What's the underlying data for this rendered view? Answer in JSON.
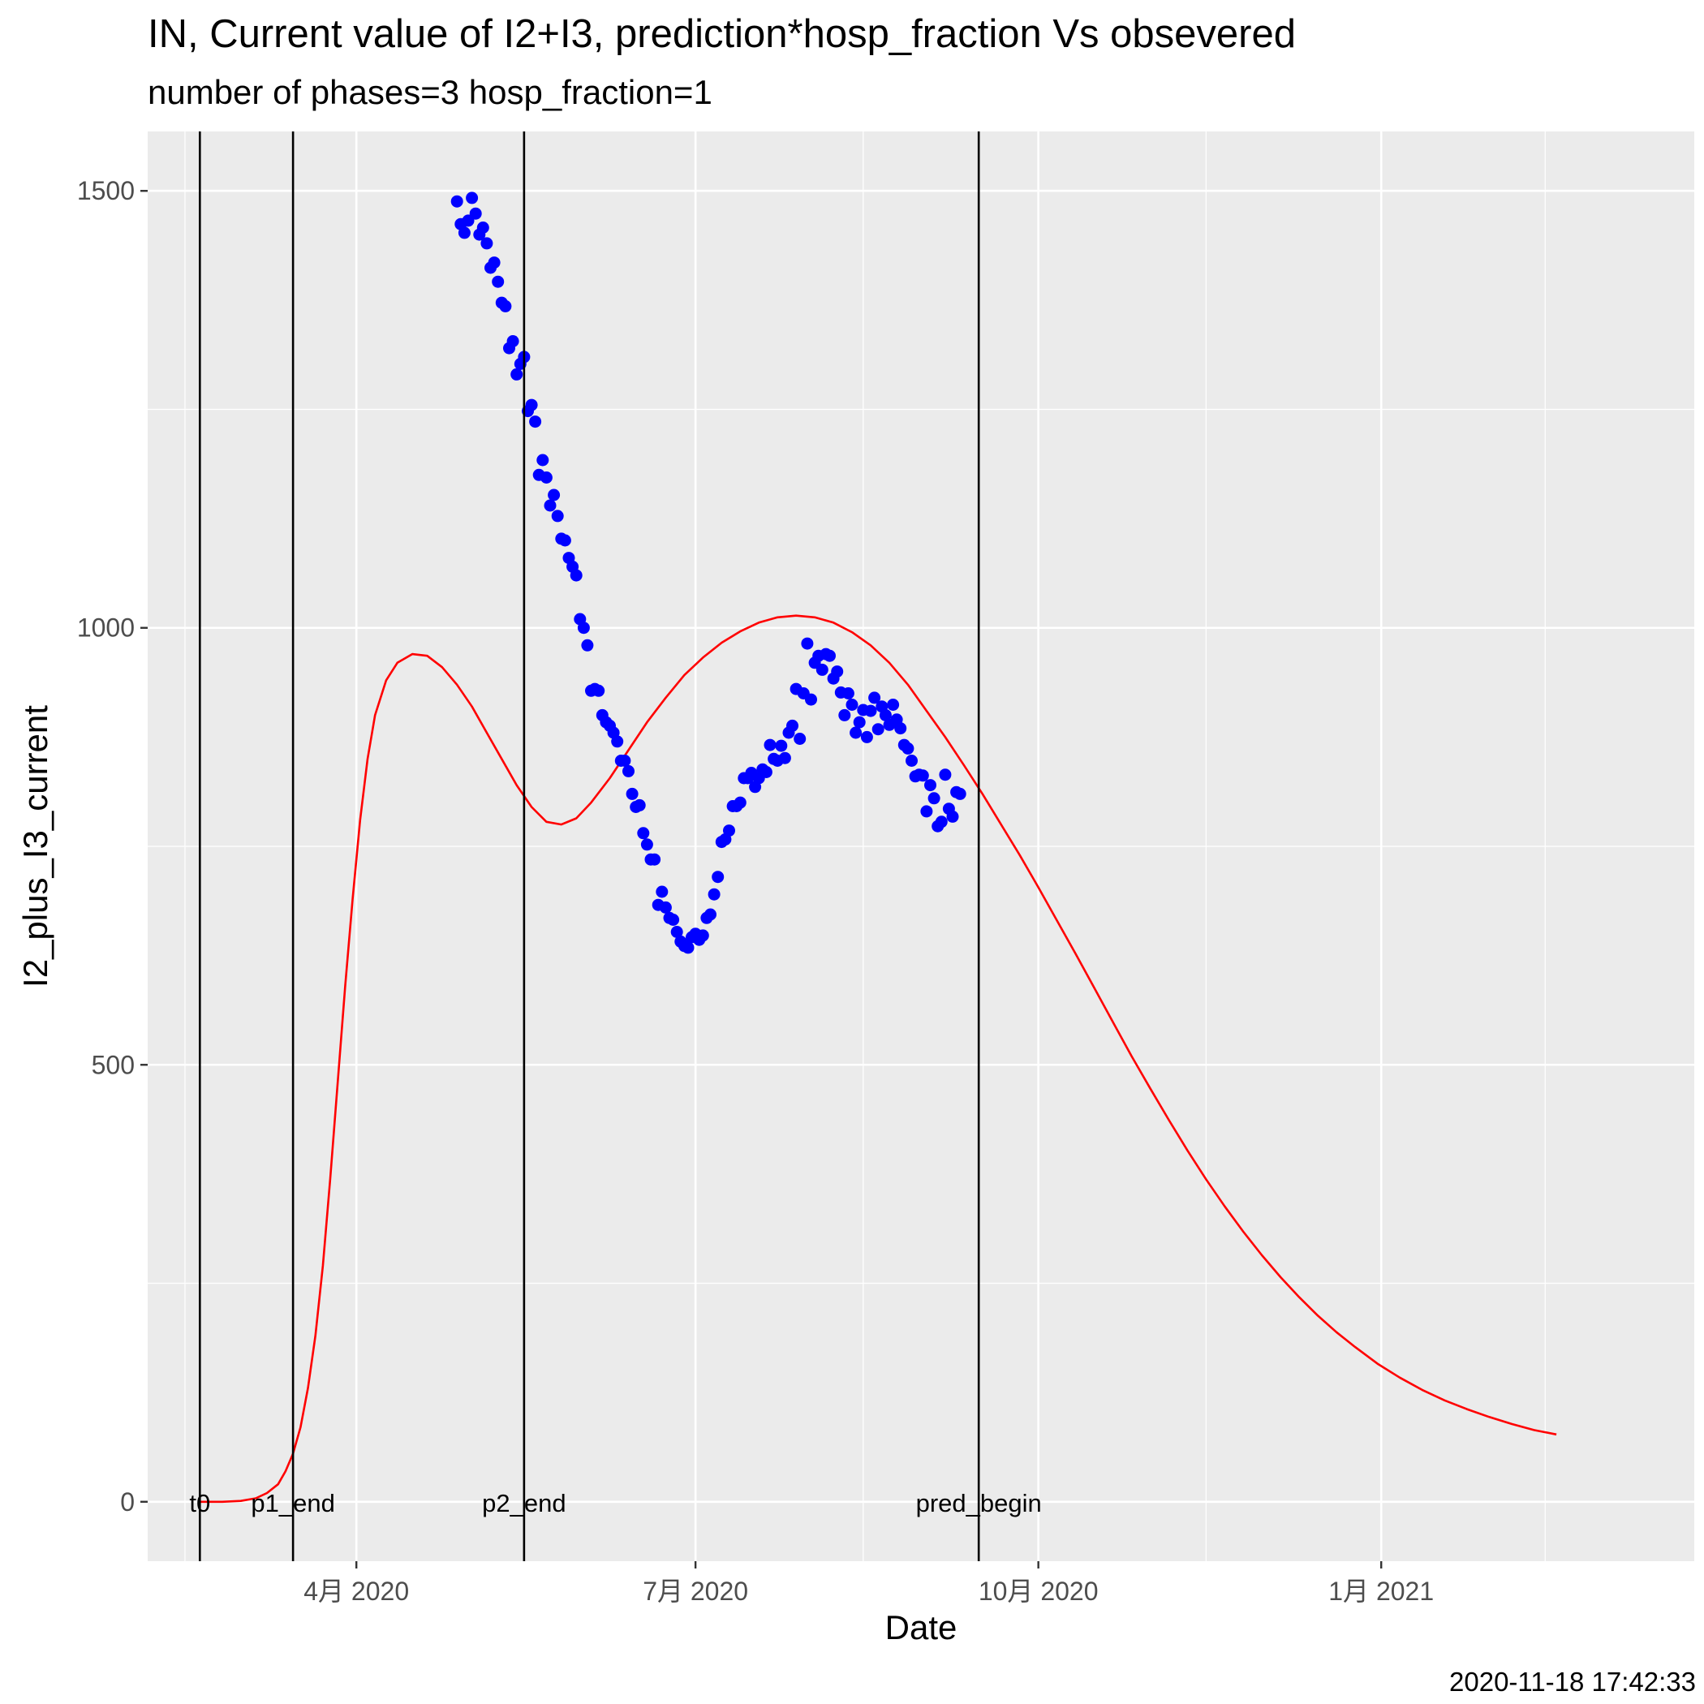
{
  "timestamp": "2020-11-18 17:42:33",
  "chart_data": {
    "type": "scatter",
    "title": "IN, Current value of I2+I3, prediction*hosp_fraction Vs obsevered",
    "subtitle": "number of phases=3   hosp_fraction=1",
    "xlabel": "Date",
    "ylabel": "I2_plus_I3_current",
    "xlim": [
      "2020-02-05",
      "2021-03-26"
    ],
    "ylim": [
      -68,
      1568
    ],
    "y_ticks": [
      0,
      500,
      1000,
      1500
    ],
    "y_minor_ticks": [
      250,
      750,
      1250
    ],
    "x_ticks": [
      {
        "date": "2020-04-01",
        "label": "4月 2020"
      },
      {
        "date": "2020-07-01",
        "label": "7月 2020"
      },
      {
        "date": "2020-10-01",
        "label": "10月 2020"
      },
      {
        "date": "2021-01-01",
        "label": "1月 2021"
      }
    ],
    "x_minor_ticks": [
      "2020-02-15",
      "2020-05-16",
      "2020-08-15",
      "2020-11-15",
      "2021-02-14"
    ],
    "grid": true,
    "colors": {
      "panel": "#EBEBEB",
      "grid": "#FFFFFF",
      "observed": "#0000FF",
      "prediction": "#FF0000",
      "vline": "#000000"
    },
    "vlines": [
      {
        "date": "2020-02-19",
        "label": "t0"
      },
      {
        "date": "2020-03-15",
        "label": "p1_end"
      },
      {
        "date": "2020-05-16",
        "label": "p2_end"
      },
      {
        "date": "2020-09-15",
        "label": "pred_begin"
      }
    ],
    "series": [
      {
        "kind": "line",
        "points": [
          [
            "2020-02-19",
            0
          ],
          [
            "2020-02-25",
            0
          ],
          [
            "2020-03-01",
            1
          ],
          [
            "2020-03-05",
            4
          ],
          [
            "2020-03-08",
            10
          ],
          [
            "2020-03-11",
            20
          ],
          [
            "2020-03-13",
            35
          ],
          [
            "2020-03-15",
            55
          ],
          [
            "2020-03-17",
            85
          ],
          [
            "2020-03-19",
            130
          ],
          [
            "2020-03-21",
            190
          ],
          [
            "2020-03-23",
            270
          ],
          [
            "2020-03-25",
            370
          ],
          [
            "2020-03-27",
            480
          ],
          [
            "2020-03-29",
            590
          ],
          [
            "2020-03-31",
            690
          ],
          [
            "2020-04-02",
            780
          ],
          [
            "2020-04-04",
            850
          ],
          [
            "2020-04-06",
            900
          ],
          [
            "2020-04-09",
            940
          ],
          [
            "2020-04-12",
            960
          ],
          [
            "2020-04-16",
            970
          ],
          [
            "2020-04-20",
            968
          ],
          [
            "2020-04-24",
            955
          ],
          [
            "2020-04-28",
            935
          ],
          [
            "2020-05-02",
            910
          ],
          [
            "2020-05-06",
            880
          ],
          [
            "2020-05-10",
            850
          ],
          [
            "2020-05-14",
            820
          ],
          [
            "2020-05-18",
            795
          ],
          [
            "2020-05-22",
            778
          ],
          [
            "2020-05-26",
            775
          ],
          [
            "2020-05-30",
            782
          ],
          [
            "2020-06-03",
            800
          ],
          [
            "2020-06-08",
            828
          ],
          [
            "2020-06-13",
            860
          ],
          [
            "2020-06-18",
            892
          ],
          [
            "2020-06-23",
            920
          ],
          [
            "2020-06-28",
            946
          ],
          [
            "2020-07-03",
            966
          ],
          [
            "2020-07-08",
            983
          ],
          [
            "2020-07-13",
            996
          ],
          [
            "2020-07-18",
            1006
          ],
          [
            "2020-07-23",
            1012
          ],
          [
            "2020-07-28",
            1014
          ],
          [
            "2020-08-02",
            1012
          ],
          [
            "2020-08-07",
            1006
          ],
          [
            "2020-08-12",
            995
          ],
          [
            "2020-08-17",
            980
          ],
          [
            "2020-08-22",
            960
          ],
          [
            "2020-08-27",
            935
          ],
          [
            "2020-09-01",
            905
          ],
          [
            "2020-09-06",
            875
          ],
          [
            "2020-09-11",
            843
          ],
          [
            "2020-09-16",
            810
          ],
          [
            "2020-09-21",
            775
          ],
          [
            "2020-09-26",
            740
          ],
          [
            "2020-10-01",
            703
          ],
          [
            "2020-10-06",
            665
          ],
          [
            "2020-10-11",
            627
          ],
          [
            "2020-10-16",
            588
          ],
          [
            "2020-10-21",
            549
          ],
          [
            "2020-10-26",
            510
          ],
          [
            "2020-10-31",
            473
          ],
          [
            "2020-11-05",
            437
          ],
          [
            "2020-11-10",
            402
          ],
          [
            "2020-11-15",
            369
          ],
          [
            "2020-11-20",
            338
          ],
          [
            "2020-11-25",
            309
          ],
          [
            "2020-11-30",
            282
          ],
          [
            "2020-12-05",
            257
          ],
          [
            "2020-12-10",
            234
          ],
          [
            "2020-12-15",
            213
          ],
          [
            "2020-12-20",
            194
          ],
          [
            "2020-12-25",
            177
          ],
          [
            "2020-12-31",
            158
          ],
          [
            "2021-01-06",
            142
          ],
          [
            "2021-01-12",
            128
          ],
          [
            "2021-01-18",
            116
          ],
          [
            "2021-01-24",
            106
          ],
          [
            "2021-01-30",
            97
          ],
          [
            "2021-02-05",
            89
          ],
          [
            "2021-02-11",
            82
          ],
          [
            "2021-02-17",
            77
          ]
        ]
      },
      {
        "kind": "points",
        "points": [
          [
            "2020-04-28",
            1488
          ],
          [
            "2020-04-29",
            1462
          ],
          [
            "2020-04-30",
            1452
          ],
          [
            "2020-05-01",
            1466
          ],
          [
            "2020-05-02",
            1492
          ],
          [
            "2020-05-03",
            1474
          ],
          [
            "2020-05-04",
            1450
          ],
          [
            "2020-05-05",
            1458
          ],
          [
            "2020-05-06",
            1440
          ],
          [
            "2020-05-07",
            1412
          ],
          [
            "2020-05-08",
            1418
          ],
          [
            "2020-05-09",
            1396
          ],
          [
            "2020-05-10",
            1372
          ],
          [
            "2020-05-11",
            1368
          ],
          [
            "2020-05-12",
            1320
          ],
          [
            "2020-05-13",
            1328
          ],
          [
            "2020-05-14",
            1290
          ],
          [
            "2020-05-15",
            1302
          ],
          [
            "2020-05-16",
            1310
          ],
          [
            "2020-05-17",
            1248
          ],
          [
            "2020-05-18",
            1255
          ],
          [
            "2020-05-19",
            1236
          ],
          [
            "2020-05-20",
            1175
          ],
          [
            "2020-05-21",
            1192
          ],
          [
            "2020-05-22",
            1172
          ],
          [
            "2020-05-23",
            1140
          ],
          [
            "2020-05-24",
            1152
          ],
          [
            "2020-05-25",
            1128
          ],
          [
            "2020-05-26",
            1102
          ],
          [
            "2020-05-27",
            1100
          ],
          [
            "2020-05-28",
            1080
          ],
          [
            "2020-05-29",
            1070
          ],
          [
            "2020-05-30",
            1060
          ],
          [
            "2020-05-31",
            1010
          ],
          [
            "2020-06-01",
            1000
          ],
          [
            "2020-06-02",
            980
          ],
          [
            "2020-06-03",
            928
          ],
          [
            "2020-06-04",
            930
          ],
          [
            "2020-06-05",
            928
          ],
          [
            "2020-06-06",
            900
          ],
          [
            "2020-06-07",
            892
          ],
          [
            "2020-06-08",
            888
          ],
          [
            "2020-06-09",
            880
          ],
          [
            "2020-06-10",
            870
          ],
          [
            "2020-06-11",
            848
          ],
          [
            "2020-06-12",
            848
          ],
          [
            "2020-06-13",
            836
          ],
          [
            "2020-06-14",
            810
          ],
          [
            "2020-06-15",
            795
          ],
          [
            "2020-06-16",
            797
          ],
          [
            "2020-06-17",
            765
          ],
          [
            "2020-06-18",
            752
          ],
          [
            "2020-06-19",
            735
          ],
          [
            "2020-06-20",
            735
          ],
          [
            "2020-06-21",
            683
          ],
          [
            "2020-06-22",
            698
          ],
          [
            "2020-06-23",
            680
          ],
          [
            "2020-06-24",
            668
          ],
          [
            "2020-06-25",
            666
          ],
          [
            "2020-06-26",
            652
          ],
          [
            "2020-06-27",
            641
          ],
          [
            "2020-06-28",
            636
          ],
          [
            "2020-06-29",
            634
          ],
          [
            "2020-06-30",
            646
          ],
          [
            "2020-07-01",
            650
          ],
          [
            "2020-07-02",
            643
          ],
          [
            "2020-07-03",
            648
          ],
          [
            "2020-07-04",
            668
          ],
          [
            "2020-07-05",
            672
          ],
          [
            "2020-07-06",
            695
          ],
          [
            "2020-07-07",
            715
          ],
          [
            "2020-07-08",
            755
          ],
          [
            "2020-07-09",
            758
          ],
          [
            "2020-07-10",
            768
          ],
          [
            "2020-07-11",
            796
          ],
          [
            "2020-07-12",
            796
          ],
          [
            "2020-07-13",
            800
          ],
          [
            "2020-07-14",
            828
          ],
          [
            "2020-07-15",
            828
          ],
          [
            "2020-07-16",
            834
          ],
          [
            "2020-07-17",
            818
          ],
          [
            "2020-07-18",
            828
          ],
          [
            "2020-07-19",
            838
          ],
          [
            "2020-07-20",
            835
          ],
          [
            "2020-07-21",
            866
          ],
          [
            "2020-07-22",
            850
          ],
          [
            "2020-07-23",
            848
          ],
          [
            "2020-07-24",
            865
          ],
          [
            "2020-07-25",
            851
          ],
          [
            "2020-07-26",
            880
          ],
          [
            "2020-07-27",
            888
          ],
          [
            "2020-07-28",
            930
          ],
          [
            "2020-07-29",
            873
          ],
          [
            "2020-07-30",
            925
          ],
          [
            "2020-07-31",
            982
          ],
          [
            "2020-08-01",
            918
          ],
          [
            "2020-08-02",
            960
          ],
          [
            "2020-08-03",
            968
          ],
          [
            "2020-08-04",
            952
          ],
          [
            "2020-08-05",
            970
          ],
          [
            "2020-08-06",
            968
          ],
          [
            "2020-08-07",
            942
          ],
          [
            "2020-08-08",
            950
          ],
          [
            "2020-08-09",
            926
          ],
          [
            "2020-08-10",
            900
          ],
          [
            "2020-08-11",
            925
          ],
          [
            "2020-08-12",
            912
          ],
          [
            "2020-08-13",
            880
          ],
          [
            "2020-08-14",
            892
          ],
          [
            "2020-08-15",
            906
          ],
          [
            "2020-08-16",
            875
          ],
          [
            "2020-08-17",
            905
          ],
          [
            "2020-08-18",
            920
          ],
          [
            "2020-08-19",
            884
          ],
          [
            "2020-08-20",
            910
          ],
          [
            "2020-08-21",
            900
          ],
          [
            "2020-08-22",
            889
          ],
          [
            "2020-08-23",
            912
          ],
          [
            "2020-08-24",
            895
          ],
          [
            "2020-08-25",
            885
          ],
          [
            "2020-08-26",
            866
          ],
          [
            "2020-08-27",
            862
          ],
          [
            "2020-08-28",
            848
          ],
          [
            "2020-08-29",
            830
          ],
          [
            "2020-08-30",
            832
          ],
          [
            "2020-08-31",
            831
          ],
          [
            "2020-09-01",
            790
          ],
          [
            "2020-09-02",
            820
          ],
          [
            "2020-09-03",
            805
          ],
          [
            "2020-09-04",
            773
          ],
          [
            "2020-09-05",
            778
          ],
          [
            "2020-09-06",
            832
          ],
          [
            "2020-09-07",
            793
          ],
          [
            "2020-09-08",
            784
          ],
          [
            "2020-09-09",
            812
          ],
          [
            "2020-09-10",
            810
          ]
        ]
      }
    ]
  }
}
